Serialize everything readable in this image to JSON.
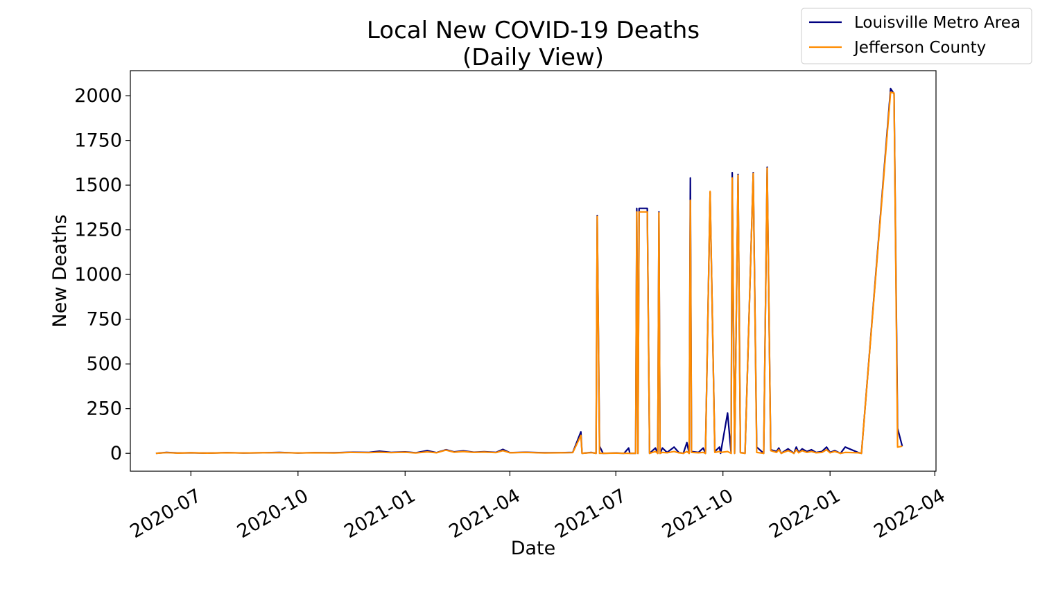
{
  "chart_data": {
    "type": "line",
    "title": "Local New COVID-19 Deaths",
    "subtitle": "(Daily View)",
    "xlabel": "Date",
    "ylabel": "New Deaths",
    "x_ticks": [
      "2020-07",
      "2020-10",
      "2021-01",
      "2021-04",
      "2021-07",
      "2021-10",
      "2022-01",
      "2022-04"
    ],
    "y_ticks": [
      0,
      250,
      500,
      750,
      1000,
      1250,
      1500,
      1750,
      2000
    ],
    "xlim": [
      "2020-05-10",
      "2022-04-02"
    ],
    "ylim": [
      -100,
      2140
    ],
    "grid": false,
    "legend_position": "top-right",
    "series": [
      {
        "name": "Louisville Metro Area",
        "color": "#000080",
        "points": [
          [
            "2020-06-01",
            0
          ],
          [
            "2020-06-10",
            5
          ],
          [
            "2020-06-20",
            2
          ],
          [
            "2020-07-01",
            3
          ],
          [
            "2020-07-15",
            1
          ],
          [
            "2020-08-01",
            4
          ],
          [
            "2020-08-15",
            2
          ],
          [
            "2020-09-01",
            3
          ],
          [
            "2020-09-15",
            5
          ],
          [
            "2020-10-01",
            2
          ],
          [
            "2020-10-15",
            4
          ],
          [
            "2020-11-01",
            3
          ],
          [
            "2020-11-15",
            6
          ],
          [
            "2020-12-01",
            5
          ],
          [
            "2020-12-10",
            12
          ],
          [
            "2020-12-20",
            5
          ],
          [
            "2021-01-01",
            8
          ],
          [
            "2021-01-10",
            3
          ],
          [
            "2021-01-20",
            15
          ],
          [
            "2021-01-28",
            4
          ],
          [
            "2021-02-05",
            20
          ],
          [
            "2021-02-12",
            8
          ],
          [
            "2021-02-20",
            14
          ],
          [
            "2021-03-01",
            6
          ],
          [
            "2021-03-10",
            9
          ],
          [
            "2021-03-20",
            5
          ],
          [
            "2021-03-26",
            22
          ],
          [
            "2021-04-01",
            4
          ],
          [
            "2021-04-15",
            6
          ],
          [
            "2021-05-01",
            3
          ],
          [
            "2021-05-15",
            4
          ],
          [
            "2021-05-25",
            5
          ],
          [
            "2021-06-01",
            120
          ],
          [
            "2021-06-02",
            0
          ],
          [
            "2021-06-10",
            5
          ],
          [
            "2021-06-14",
            0
          ],
          [
            "2021-06-15",
            1330
          ],
          [
            "2021-06-17",
            40
          ],
          [
            "2021-06-20",
            0
          ],
          [
            "2021-07-01",
            2
          ],
          [
            "2021-07-08",
            0
          ],
          [
            "2021-07-12",
            30
          ],
          [
            "2021-07-13",
            0
          ],
          [
            "2021-07-18",
            0
          ],
          [
            "2021-07-19",
            1370
          ],
          [
            "2021-07-20",
            0
          ],
          [
            "2021-07-21",
            1370
          ],
          [
            "2021-07-28",
            1370
          ],
          [
            "2021-07-30",
            0
          ],
          [
            "2021-08-04",
            30
          ],
          [
            "2021-08-06",
            0
          ],
          [
            "2021-08-07",
            1350
          ],
          [
            "2021-08-08",
            0
          ],
          [
            "2021-08-10",
            30
          ],
          [
            "2021-08-14",
            5
          ],
          [
            "2021-08-20",
            35
          ],
          [
            "2021-08-24",
            5
          ],
          [
            "2021-08-28",
            0
          ],
          [
            "2021-08-31",
            60
          ],
          [
            "2021-09-02",
            0
          ],
          [
            "2021-09-03",
            1540
          ],
          [
            "2021-09-04",
            10
          ],
          [
            "2021-09-10",
            5
          ],
          [
            "2021-09-14",
            30
          ],
          [
            "2021-09-16",
            0
          ],
          [
            "2021-09-20",
            1460
          ],
          [
            "2021-09-24",
            10
          ],
          [
            "2021-09-28",
            35
          ],
          [
            "2021-09-29",
            0
          ],
          [
            "2021-10-05",
            225
          ],
          [
            "2021-10-08",
            0
          ],
          [
            "2021-10-09",
            1570
          ],
          [
            "2021-10-11",
            0
          ],
          [
            "2021-10-14",
            1560
          ],
          [
            "2021-10-16",
            5
          ],
          [
            "2021-10-20",
            0
          ],
          [
            "2021-10-27",
            1570
          ],
          [
            "2021-10-30",
            35
          ],
          [
            "2021-11-05",
            0
          ],
          [
            "2021-11-08",
            1600
          ],
          [
            "2021-11-11",
            20
          ],
          [
            "2021-11-16",
            10
          ],
          [
            "2021-11-18",
            30
          ],
          [
            "2021-11-20",
            0
          ],
          [
            "2021-11-26",
            25
          ],
          [
            "2021-12-01",
            0
          ],
          [
            "2021-12-03",
            35
          ],
          [
            "2021-12-05",
            5
          ],
          [
            "2021-12-08",
            25
          ],
          [
            "2021-12-12",
            10
          ],
          [
            "2021-12-16",
            20
          ],
          [
            "2021-12-20",
            5
          ],
          [
            "2021-12-25",
            10
          ],
          [
            "2021-12-29",
            35
          ],
          [
            "2022-01-01",
            5
          ],
          [
            "2022-01-05",
            15
          ],
          [
            "2022-01-10",
            0
          ],
          [
            "2022-01-14",
            35
          ],
          [
            "2022-01-25",
            5
          ],
          [
            "2022-01-28",
            0
          ],
          [
            "2022-02-22",
            2040
          ],
          [
            "2022-02-25",
            2010
          ],
          [
            "2022-02-28",
            140
          ],
          [
            "2022-03-04",
            40
          ]
        ]
      },
      {
        "name": "Jefferson County",
        "color": "#ff8c00",
        "points": [
          [
            "2020-06-01",
            0
          ],
          [
            "2020-06-10",
            4
          ],
          [
            "2020-06-20",
            1
          ],
          [
            "2020-07-01",
            3
          ],
          [
            "2020-07-15",
            1
          ],
          [
            "2020-08-01",
            3
          ],
          [
            "2020-08-15",
            2
          ],
          [
            "2020-09-01",
            3
          ],
          [
            "2020-09-15",
            4
          ],
          [
            "2020-10-01",
            2
          ],
          [
            "2020-10-15",
            3
          ],
          [
            "2020-11-01",
            2
          ],
          [
            "2020-11-15",
            5
          ],
          [
            "2020-12-01",
            4
          ],
          [
            "2020-12-10",
            6
          ],
          [
            "2020-12-20",
            4
          ],
          [
            "2021-01-01",
            6
          ],
          [
            "2021-01-10",
            2
          ],
          [
            "2021-01-20",
            8
          ],
          [
            "2021-01-28",
            3
          ],
          [
            "2021-02-05",
            18
          ],
          [
            "2021-02-12",
            6
          ],
          [
            "2021-02-20",
            10
          ],
          [
            "2021-03-01",
            5
          ],
          [
            "2021-03-10",
            7
          ],
          [
            "2021-03-20",
            4
          ],
          [
            "2021-03-26",
            15
          ],
          [
            "2021-04-01",
            3
          ],
          [
            "2021-04-15",
            5
          ],
          [
            "2021-05-01",
            2
          ],
          [
            "2021-05-15",
            3
          ],
          [
            "2021-05-25",
            4
          ],
          [
            "2021-06-01",
            100
          ],
          [
            "2021-06-02",
            0
          ],
          [
            "2021-06-10",
            4
          ],
          [
            "2021-06-14",
            0
          ],
          [
            "2021-06-15",
            1325
          ],
          [
            "2021-06-17",
            0
          ],
          [
            "2021-06-20",
            0
          ],
          [
            "2021-07-01",
            1
          ],
          [
            "2021-07-08",
            0
          ],
          [
            "2021-07-12",
            0
          ],
          [
            "2021-07-18",
            0
          ],
          [
            "2021-07-19",
            1350
          ],
          [
            "2021-07-20",
            0
          ],
          [
            "2021-07-21",
            1350
          ],
          [
            "2021-07-28",
            1350
          ],
          [
            "2021-07-30",
            0
          ],
          [
            "2021-08-04",
            10
          ],
          [
            "2021-08-06",
            0
          ],
          [
            "2021-08-07",
            1345
          ],
          [
            "2021-08-08",
            0
          ],
          [
            "2021-08-10",
            5
          ],
          [
            "2021-08-14",
            3
          ],
          [
            "2021-08-20",
            10
          ],
          [
            "2021-08-24",
            3
          ],
          [
            "2021-08-28",
            0
          ],
          [
            "2021-08-31",
            10
          ],
          [
            "2021-09-02",
            0
          ],
          [
            "2021-09-03",
            1415
          ],
          [
            "2021-09-04",
            5
          ],
          [
            "2021-09-10",
            3
          ],
          [
            "2021-09-14",
            5
          ],
          [
            "2021-09-16",
            0
          ],
          [
            "2021-09-20",
            1465
          ],
          [
            "2021-09-24",
            5
          ],
          [
            "2021-09-28",
            10
          ],
          [
            "2021-09-29",
            5
          ],
          [
            "2021-10-05",
            10
          ],
          [
            "2021-10-08",
            0
          ],
          [
            "2021-10-09",
            1540
          ],
          [
            "2021-10-11",
            0
          ],
          [
            "2021-10-14",
            1555
          ],
          [
            "2021-10-16",
            3
          ],
          [
            "2021-10-20",
            0
          ],
          [
            "2021-10-27",
            1565
          ],
          [
            "2021-10-30",
            5
          ],
          [
            "2021-11-05",
            0
          ],
          [
            "2021-11-08",
            1595
          ],
          [
            "2021-11-11",
            15
          ],
          [
            "2021-11-16",
            5
          ],
          [
            "2021-11-18",
            20
          ],
          [
            "2021-11-20",
            0
          ],
          [
            "2021-11-26",
            15
          ],
          [
            "2021-12-01",
            0
          ],
          [
            "2021-12-03",
            20
          ],
          [
            "2021-12-05",
            3
          ],
          [
            "2021-12-08",
            15
          ],
          [
            "2021-12-12",
            5
          ],
          [
            "2021-12-16",
            10
          ],
          [
            "2021-12-20",
            3
          ],
          [
            "2021-12-25",
            5
          ],
          [
            "2021-12-29",
            20
          ],
          [
            "2022-01-01",
            3
          ],
          [
            "2022-01-05",
            10
          ],
          [
            "2022-01-10",
            0
          ],
          [
            "2022-01-14",
            5
          ],
          [
            "2022-01-25",
            3
          ],
          [
            "2022-01-28",
            0
          ],
          [
            "2022-02-22",
            2020
          ],
          [
            "2022-02-25",
            2015
          ],
          [
            "2022-02-28",
            35
          ],
          [
            "2022-03-04",
            40
          ]
        ]
      }
    ]
  }
}
